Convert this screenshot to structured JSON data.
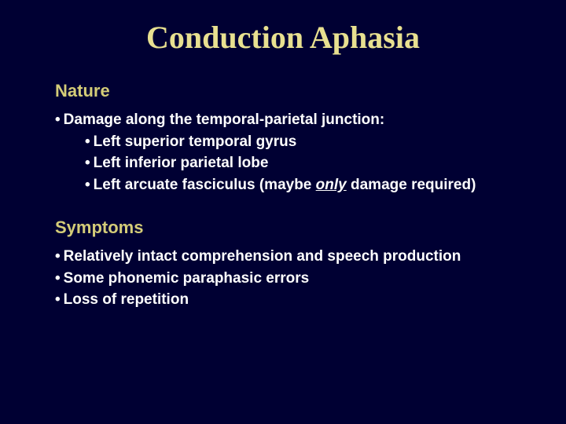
{
  "colors": {
    "background": "#000033",
    "title": "#e8e090",
    "heading": "#d4cc78",
    "body": "#ffffff"
  },
  "typography": {
    "title_font": "Times New Roman",
    "body_font": "Arial",
    "title_size_pt": 40,
    "heading_size_pt": 22,
    "body_size_pt": 19,
    "title_weight": "bold",
    "heading_weight": "bold",
    "body_weight": "bold"
  },
  "title": "Conduction Aphasia",
  "sections": [
    {
      "heading": "Nature",
      "bullets": [
        {
          "level": 1,
          "text": "Damage along the temporal-parietal junction:"
        },
        {
          "level": 2,
          "text": "Left superior temporal gyrus"
        },
        {
          "level": 2,
          "text": "Left inferior parietal lobe"
        },
        {
          "level": 2,
          "prefix": "Left arcuate fasciculus (maybe ",
          "emph": "only",
          "suffix": " damage required)"
        }
      ]
    },
    {
      "heading": "Symptoms",
      "bullets": [
        {
          "level": 1,
          "text": "Relatively intact comprehension and speech production"
        },
        {
          "level": 1,
          "text": "Some phonemic paraphasic errors"
        },
        {
          "level": 1,
          "text": "Loss of repetition"
        }
      ]
    }
  ]
}
